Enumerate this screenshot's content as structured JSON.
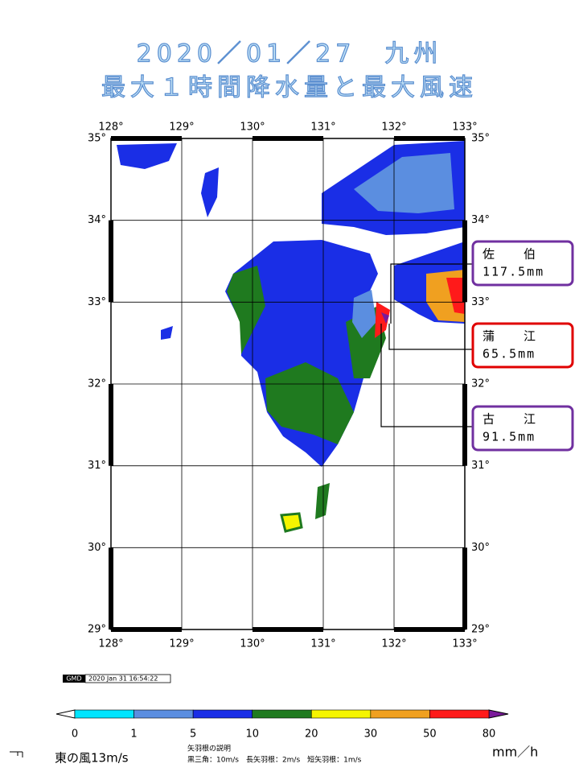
{
  "title": {
    "line1": "2020／01／27　九州",
    "line2": "最大１時間降水量と最大風速"
  },
  "map": {
    "lon_labels": [
      "128°",
      "129°",
      "130°",
      "131°",
      "132°",
      "133°"
    ],
    "lat_labels": [
      "35°",
      "34°",
      "33°",
      "32°",
      "31°",
      "30°",
      "29°"
    ]
  },
  "callouts": [
    {
      "name": "佐　　伯",
      "value": "117.5mm"
    },
    {
      "name": "蒲　　江",
      "value": "65.5mm"
    },
    {
      "name": "古　　江",
      "value": "91.5mm"
    }
  ],
  "stamp": {
    "logo": "GMD",
    "time": "2020 Jan 31 16:54:22"
  },
  "legend": {
    "labels": [
      "0",
      "1",
      "5",
      "10",
      "20",
      "30",
      "50",
      "80"
    ],
    "unit": "mm／h"
  },
  "wind": {
    "label": "東の風13m/s",
    "note_title": "矢羽根の説明",
    "note": "黒三角：10m/s　長矢羽根：2m/s　短矢羽根：1m/s"
  }
}
